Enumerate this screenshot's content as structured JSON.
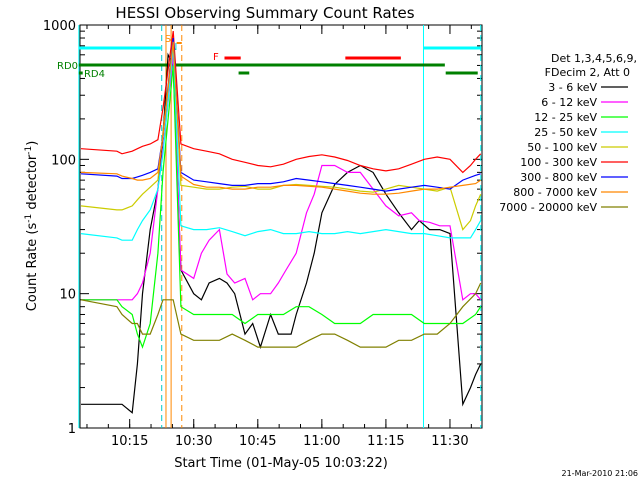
{
  "chart_data": {
    "type": "line",
    "title": "HESSI Observing Summary Count Rates",
    "xlabel": "Start Time (01-May-05 10:03:22)",
    "ylabel_pre": "Count Rate (s",
    "ylabel_sup": "-1",
    "ylabel_mid": " detector",
    "ylabel_sup2": "-1",
    "ylabel_post": ")",
    "y_scale": "log",
    "ylim": [
      1,
      1000
    ],
    "xlim": [
      "10:03:22",
      "11:37:30"
    ],
    "x_ticks": [
      "10:15",
      "10:30",
      "10:45",
      "11:00",
      "11:15",
      "11:30"
    ],
    "y_ticks": [
      "1",
      "10",
      "100",
      "1000"
    ],
    "legend": {
      "header1": "Det 1,3,4,5,6,9,",
      "header2": "FDecim 2, Att 0",
      "position": "right"
    },
    "series": [
      {
        "name": "3 - 6 keV",
        "color": "#000000",
        "t": [
          10.06,
          10.2,
          10.22,
          10.26,
          10.28,
          10.3,
          10.33,
          10.36,
          10.38,
          10.4,
          10.42,
          10.45,
          10.5,
          10.53,
          10.56,
          10.6,
          10.63,
          10.66,
          10.7,
          10.73,
          10.76,
          10.8,
          10.83,
          10.86,
          10.88,
          10.9,
          10.94,
          10.97,
          11.0,
          11.05,
          11.1,
          11.15,
          11.2,
          11.25,
          11.3,
          11.35,
          11.38,
          11.42,
          11.46,
          11.5,
          11.55,
          11.58,
          11.6,
          11.62
        ],
        "v": [
          1.5,
          1.5,
          1.5,
          1.3,
          3,
          10,
          30,
          60,
          150,
          600,
          500,
          15,
          10,
          9,
          12,
          13,
          12,
          10,
          5,
          6,
          4,
          7,
          5,
          5,
          5,
          7,
          12,
          20,
          40,
          65,
          80,
          90,
          80,
          55,
          40,
          30,
          35,
          30,
          30,
          28,
          1.5,
          2,
          2.5,
          3
        ]
      },
      {
        "name": "6 - 12 keV",
        "color": "#ff00ff",
        "t": [
          10.06,
          10.2,
          10.22,
          10.26,
          10.28,
          10.3,
          10.33,
          10.36,
          10.38,
          10.42,
          10.45,
          10.5,
          10.53,
          10.56,
          10.6,
          10.63,
          10.66,
          10.7,
          10.73,
          10.76,
          10.8,
          10.83,
          10.86,
          10.9,
          10.94,
          10.97,
          11.0,
          11.05,
          11.1,
          11.15,
          11.2,
          11.25,
          11.3,
          11.35,
          11.38,
          11.42,
          11.46,
          11.5,
          11.55,
          11.58,
          11.6,
          11.62
        ],
        "v": [
          9,
          9,
          9,
          9,
          10,
          12,
          20,
          60,
          120,
          600,
          15,
          13,
          20,
          25,
          30,
          14,
          12,
          13,
          9,
          10,
          10,
          12,
          15,
          20,
          40,
          55,
          90,
          90,
          80,
          80,
          60,
          45,
          38,
          40,
          35,
          34,
          32,
          32,
          9,
          10,
          10,
          9
        ]
      },
      {
        "name": "12 - 25 keV",
        "color": "#00ff00",
        "t": [
          10.06,
          10.2,
          10.22,
          10.26,
          10.28,
          10.3,
          10.33,
          10.36,
          10.38,
          10.42,
          10.45,
          10.5,
          10.55,
          10.6,
          10.65,
          10.7,
          10.75,
          10.8,
          10.85,
          10.9,
          10.95,
          11.0,
          11.05,
          11.1,
          11.15,
          11.2,
          11.25,
          11.3,
          11.35,
          11.4,
          11.45,
          11.5,
          11.55,
          11.6,
          11.62
        ],
        "v": [
          9,
          9,
          8,
          7,
          5,
          4,
          6,
          20,
          80,
          500,
          8,
          7,
          7,
          7,
          7,
          6,
          7,
          7,
          7,
          8,
          8,
          7,
          6,
          6,
          6,
          7,
          7,
          7,
          7,
          6,
          6,
          6,
          6,
          7,
          8
        ]
      },
      {
        "name": "25 - 50 keV",
        "color": "#00ffff",
        "t": [
          10.06,
          10.2,
          10.22,
          10.26,
          10.28,
          10.3,
          10.33,
          10.36,
          10.38,
          10.42,
          10.45,
          10.5,
          10.55,
          10.6,
          10.65,
          10.7,
          10.75,
          10.8,
          10.85,
          10.9,
          10.95,
          11.0,
          11.05,
          11.1,
          11.15,
          11.2,
          11.25,
          11.3,
          11.35,
          11.4,
          11.45,
          11.5,
          11.55,
          11.58,
          11.6,
          11.62
        ],
        "v": [
          28,
          26,
          25,
          25,
          30,
          35,
          42,
          60,
          110,
          700,
          32,
          30,
          30,
          31,
          29,
          27,
          29,
          30,
          28,
          28,
          29,
          28,
          28,
          29,
          28,
          29,
          30,
          29,
          28,
          28,
          27,
          26,
          26,
          26,
          30,
          35
        ]
      },
      {
        "name": "50 - 100 keV",
        "color": "#cccc00",
        "t": [
          10.06,
          10.2,
          10.22,
          10.26,
          10.28,
          10.3,
          10.33,
          10.36,
          10.38,
          10.42,
          10.45,
          10.5,
          10.55,
          10.6,
          10.65,
          10.7,
          10.75,
          10.8,
          10.85,
          10.9,
          10.95,
          11.0,
          11.05,
          11.1,
          11.15,
          11.2,
          11.25,
          11.3,
          11.35,
          11.4,
          11.45,
          11.5,
          11.55,
          11.58,
          11.6,
          11.62
        ],
        "v": [
          45,
          42,
          42,
          45,
          50,
          55,
          62,
          70,
          160,
          800,
          64,
          62,
          60,
          60,
          62,
          63,
          60,
          60,
          64,
          65,
          64,
          63,
          62,
          60,
          58,
          57,
          60,
          64,
          62,
          60,
          58,
          62,
          30,
          35,
          45,
          55
        ]
      },
      {
        "name": "100 - 300 keV",
        "color": "#ff0000",
        "t": [
          10.06,
          10.2,
          10.22,
          10.26,
          10.28,
          10.3,
          10.33,
          10.36,
          10.38,
          10.42,
          10.45,
          10.5,
          10.55,
          10.6,
          10.65,
          10.7,
          10.75,
          10.8,
          10.85,
          10.9,
          10.95,
          11.0,
          11.05,
          11.1,
          11.15,
          11.2,
          11.25,
          11.3,
          11.35,
          11.4,
          11.45,
          11.5,
          11.55,
          11.58,
          11.6,
          11.62
        ],
        "v": [
          120,
          115,
          110,
          115,
          120,
          125,
          130,
          140,
          240,
          900,
          130,
          120,
          115,
          110,
          100,
          95,
          90,
          88,
          92,
          100,
          105,
          108,
          104,
          98,
          90,
          85,
          82,
          85,
          92,
          100,
          104,
          100,
          80,
          90,
          100,
          110
        ]
      },
      {
        "name": "300 - 800 keV",
        "color": "#0000ff",
        "t": [
          10.06,
          10.2,
          10.22,
          10.26,
          10.28,
          10.3,
          10.33,
          10.36,
          10.38,
          10.42,
          10.45,
          10.5,
          10.55,
          10.6,
          10.65,
          10.7,
          10.75,
          10.8,
          10.85,
          10.9,
          10.95,
          11.0,
          11.05,
          11.1,
          11.15,
          11.2,
          11.25,
          11.3,
          11.35,
          11.4,
          11.45,
          11.5,
          11.55,
          11.6,
          11.62
        ],
        "v": [
          78,
          75,
          72,
          72,
          74,
          76,
          80,
          85,
          150,
          800,
          80,
          70,
          68,
          66,
          64,
          64,
          66,
          66,
          68,
          72,
          70,
          68,
          66,
          64,
          62,
          60,
          58,
          60,
          62,
          64,
          62,
          60,
          70,
          76,
          78
        ]
      },
      {
        "name": "800 - 7000 keV",
        "color": "#ff8800",
        "t": [
          10.06,
          10.2,
          10.22,
          10.26,
          10.28,
          10.3,
          10.33,
          10.36,
          10.38,
          10.42,
          10.45,
          10.5,
          10.55,
          10.6,
          10.65,
          10.7,
          10.75,
          10.8,
          10.85,
          10.9,
          10.95,
          11.0,
          11.05,
          11.1,
          11.15,
          11.2,
          11.25,
          11.3,
          11.35,
          11.4,
          11.45,
          11.5,
          11.55,
          11.6,
          11.62
        ],
        "v": [
          80,
          78,
          75,
          72,
          70,
          70,
          72,
          80,
          150,
          750,
          75,
          65,
          62,
          62,
          60,
          60,
          62,
          62,
          64,
          64,
          63,
          62,
          60,
          58,
          56,
          55,
          55,
          56,
          58,
          60,
          60,
          62,
          64,
          66,
          70
        ]
      },
      {
        "name": "7000 - 20000 keV",
        "color": "#808000",
        "t": [
          10.06,
          10.2,
          10.22,
          10.26,
          10.28,
          10.3,
          10.33,
          10.36,
          10.38,
          10.42,
          10.45,
          10.5,
          10.55,
          10.6,
          10.65,
          10.7,
          10.75,
          10.8,
          10.85,
          10.9,
          10.95,
          11.0,
          11.05,
          11.1,
          11.15,
          11.2,
          11.25,
          11.3,
          11.35,
          11.4,
          11.45,
          11.5,
          11.55,
          11.6,
          11.62
        ],
        "v": [
          9,
          8,
          7,
          6,
          6,
          5,
          5,
          7,
          9,
          9,
          5,
          4.5,
          4.5,
          4.5,
          5,
          4.5,
          4,
          4,
          4,
          4,
          4.5,
          5,
          5,
          4.5,
          4,
          4,
          4,
          4.5,
          4.5,
          5,
          5,
          6,
          8,
          10,
          12
        ]
      }
    ],
    "flags": {
      "labels": {
        "s": "S",
        "n": "N",
        "f": "F",
        "rd0": "RD0",
        "rd4": "RD4"
      },
      "s_color": "#ff8800",
      "n_color": "#00cccc",
      "f_color": "#ff0000",
      "rd_color": "#008000",
      "cyan_bar_color": "#00ffff"
    },
    "timestamp": "21-Mar-2010 21:06"
  }
}
